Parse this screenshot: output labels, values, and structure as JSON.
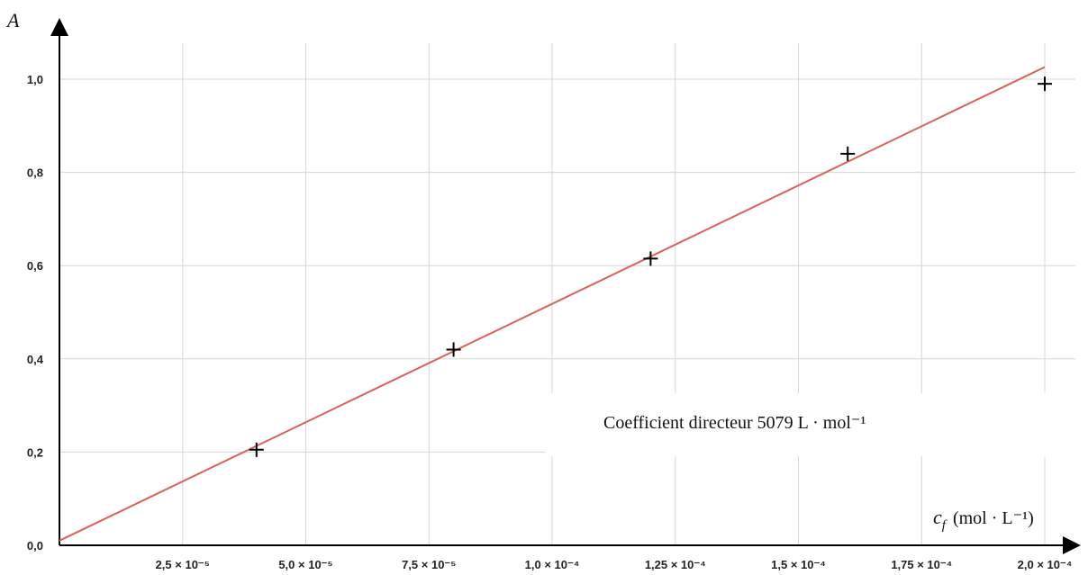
{
  "chart_data": {
    "type": "scatter",
    "ylabel": "A",
    "xlabel_symbol": "c",
    "xlabel_subscript": "f",
    "xlabel_unit": "(mol · L⁻¹)",
    "xlim": [
      0,
      0.0002
    ],
    "ylim": [
      0,
      1.0
    ],
    "x_ticks": [
      2.5e-05,
      5e-05,
      7.5e-05,
      0.0001,
      0.000125,
      0.00015,
      0.000175,
      0.0002
    ],
    "x_tick_labels": [
      "2,5 × 10⁻⁵",
      "5,0 × 10⁻⁵",
      "7,5 × 10⁻⁵",
      "1,0 × 10⁻⁴",
      "1,25 × 10⁻⁴",
      "1,5 × 10⁻⁴",
      "1,75 × 10⁻⁴",
      "2,0 × 10⁻⁴"
    ],
    "y_ticks": [
      0,
      0.2,
      0.4,
      0.6,
      0.8,
      1.0
    ],
    "y_tick_labels": [
      "0,0",
      "0,2",
      "0,4",
      "0,6",
      "0,8",
      "1,0"
    ],
    "grid": true,
    "series": [
      {
        "marker": "plus",
        "color": "#000000",
        "x": [
          4e-05,
          8e-05,
          0.00012,
          0.00016,
          0.0002
        ],
        "y": [
          0.205,
          0.42,
          0.615,
          0.84,
          0.99
        ]
      }
    ],
    "fit_line": {
      "color": "#d9625c",
      "x": [
        0,
        0.0002
      ],
      "y": [
        0.01,
        1.026
      ]
    },
    "annotation": {
      "text": "Coefficient directeur 5079 L · mol⁻¹"
    }
  }
}
